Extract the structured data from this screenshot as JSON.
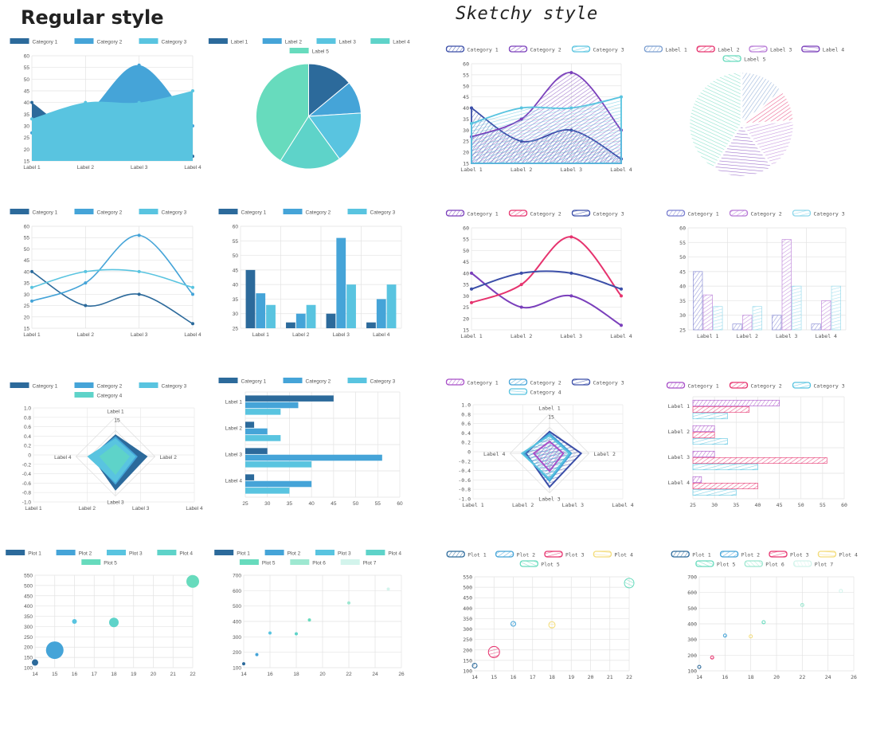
{
  "headings": {
    "regular": "Regular style",
    "sketchy": "Sketchy style"
  },
  "colors": {
    "regular": [
      "#2c6a9b",
      "#45a4d8",
      "#59c4e0",
      "#5ed3c9",
      "#67dbbd",
      "#9ee8d1",
      "#d3f4ec"
    ],
    "sketchy_line": [
      "#7a3fbb",
      "#e6336e",
      "#3b4ea8"
    ],
    "sketchy_misc": [
      "#2c6a9b",
      "#45a4d8",
      "#e6336e",
      "#f3dc7a",
      "#67dbbd",
      "#9ee8d1",
      "#d3f4ec"
    ]
  },
  "chart_data": [
    {
      "id": "area",
      "type": "area",
      "style": "regular",
      "categories": [
        "Label 1",
        "Label 2",
        "Label 3",
        "Label 4"
      ],
      "series": [
        {
          "name": "Category 1",
          "values": [
            40,
            25,
            30,
            17
          ]
        },
        {
          "name": "Category 2",
          "values": [
            27,
            35,
            56,
            30
          ]
        },
        {
          "name": "Category 3",
          "values": [
            33,
            40,
            40,
            45
          ]
        }
      ],
      "ylim": [
        15,
        60
      ],
      "yticks": [
        15,
        20,
        25,
        30,
        35,
        40,
        45,
        50,
        55,
        60
      ]
    },
    {
      "id": "pie",
      "type": "pie",
      "style": "regular",
      "labels": [
        "Label 1",
        "Label 2",
        "Label 3",
        "Label 4",
        "Label 5"
      ],
      "values": [
        14,
        10,
        16,
        19,
        41
      ]
    },
    {
      "id": "line",
      "type": "line",
      "style": "regular",
      "categories": [
        "Label 1",
        "Label 2",
        "Label 3",
        "Label 4"
      ],
      "series": [
        {
          "name": "Category 1",
          "values": [
            40,
            25,
            30,
            17
          ]
        },
        {
          "name": "Category 2",
          "values": [
            27,
            35,
            56,
            30
          ]
        },
        {
          "name": "Category 3",
          "values": [
            33,
            40,
            40,
            33
          ]
        }
      ],
      "ylim": [
        15,
        60
      ],
      "yticks": [
        15,
        20,
        25,
        30,
        35,
        40,
        45,
        50,
        55,
        60
      ]
    },
    {
      "id": "bar",
      "type": "bar",
      "style": "regular",
      "categories": [
        "Label 1",
        "Label 2",
        "Label 3",
        "Label 4"
      ],
      "series": [
        {
          "name": "Category 1",
          "values": [
            45,
            27,
            30,
            27
          ]
        },
        {
          "name": "Category 2",
          "values": [
            37,
            30,
            56,
            35
          ]
        },
        {
          "name": "Category 3",
          "values": [
            33,
            33,
            40,
            40
          ]
        }
      ],
      "ylim": [
        25,
        60
      ],
      "yticks": [
        25,
        30,
        35,
        40,
        45,
        50,
        55,
        60
      ]
    },
    {
      "id": "radar",
      "type": "radar",
      "style": "regular",
      "axes": [
        "Label 1",
        "Label 2",
        "Label 3",
        "Label 4"
      ],
      "series": [
        {
          "name": "Category 1",
          "values": [
            0.55,
            0.8,
            0.85,
            0.6
          ]
        },
        {
          "name": "Category 2",
          "values": [
            0.5,
            0.55,
            0.7,
            0.65
          ]
        },
        {
          "name": "Category 3",
          "values": [
            0.45,
            0.5,
            0.65,
            0.7
          ]
        },
        {
          "name": "Category 4",
          "values": [
            0.3,
            0.35,
            0.45,
            0.4
          ]
        }
      ],
      "yticks": [
        "1.0",
        "0.8",
        "0.6",
        "0.4",
        "0.2",
        "0",
        "-0.2",
        "-0.4",
        "-0.6",
        "-0.8",
        "-1.0"
      ],
      "xticks": [
        "Label 1",
        "Label 2",
        "Label 3",
        "Label 4"
      ],
      "center_label": "15"
    },
    {
      "id": "hbar",
      "type": "bar",
      "style": "regular",
      "orientation": "horizontal",
      "categories": [
        "Label 1",
        "Label 2",
        "Label 3",
        "Label 4"
      ],
      "series": [
        {
          "name": "Category 1",
          "values": [
            45,
            27,
            30,
            27
          ]
        },
        {
          "name": "Category 2",
          "values": [
            37,
            30,
            56,
            40
          ]
        },
        {
          "name": "Category 3",
          "values": [
            33,
            33,
            40,
            35
          ]
        }
      ],
      "xlim": [
        25,
        60
      ],
      "xticks": [
        25,
        30,
        35,
        40,
        45,
        50,
        55,
        60
      ]
    },
    {
      "id": "bubble",
      "type": "scatter",
      "style": "regular",
      "series": [
        {
          "name": "Plot 1",
          "points": [
            [
              14,
              125,
              4
            ]
          ]
        },
        {
          "name": "Plot 2",
          "points": [
            [
              15,
              185,
              11
            ]
          ]
        },
        {
          "name": "Plot 3",
          "points": [
            [
              16,
              325,
              3
            ]
          ]
        },
        {
          "name": "Plot 4",
          "points": [
            [
              18,
              320,
              6
            ]
          ]
        },
        {
          "name": "Plot 5",
          "points": [
            [
              22,
              520,
              8
            ]
          ]
        }
      ],
      "xlim": [
        14,
        22
      ],
      "xticks": [
        14,
        15,
        16,
        17,
        18,
        19,
        20,
        21,
        22
      ],
      "ylim": [
        100,
        550
      ],
      "yticks": [
        100,
        150,
        200,
        250,
        300,
        350,
        400,
        450,
        500,
        550
      ]
    },
    {
      "id": "scatter",
      "type": "scatter",
      "style": "regular",
      "series": [
        {
          "name": "Plot 1",
          "points": [
            [
              14,
              125
            ]
          ]
        },
        {
          "name": "Plot 2",
          "points": [
            [
              15,
              185
            ]
          ]
        },
        {
          "name": "Plot 3",
          "points": [
            [
              16,
              325
            ]
          ]
        },
        {
          "name": "Plot 4",
          "points": [
            [
              18,
              320
            ]
          ]
        },
        {
          "name": "Plot 5",
          "points": [
            [
              19,
              410
            ]
          ]
        },
        {
          "name": "Plot 6",
          "points": [
            [
              22,
              520
            ]
          ]
        },
        {
          "name": "Plot 7",
          "points": [
            [
              25,
              610
            ]
          ]
        }
      ],
      "xlim": [
        14,
        26
      ],
      "xticks": [
        14,
        16,
        18,
        20,
        22,
        24,
        26
      ],
      "ylim": [
        100,
        700
      ],
      "yticks": [
        100,
        200,
        300,
        400,
        500,
        600,
        700
      ]
    },
    {
      "id": "s_area",
      "type": "area",
      "style": "sketchy",
      "categories": [
        "Label 1",
        "Label 2",
        "Label 3",
        "Label 4"
      ],
      "series": [
        {
          "name": "Category 1",
          "values": [
            40,
            25,
            30,
            17
          ]
        },
        {
          "name": "Category 2",
          "values": [
            27,
            35,
            56,
            30
          ]
        },
        {
          "name": "Category 3",
          "values": [
            33,
            40,
            40,
            45
          ]
        }
      ],
      "ylim": [
        15,
        60
      ],
      "yticks": [
        15,
        20,
        25,
        30,
        35,
        40,
        45,
        50,
        55,
        60
      ]
    },
    {
      "id": "s_pie",
      "type": "pie",
      "style": "sketchy",
      "labels": [
        "Label 1",
        "Label 2",
        "Label 3",
        "Label 4",
        "Label 5"
      ],
      "values": [
        14,
        10,
        16,
        19,
        41
      ]
    },
    {
      "id": "s_line",
      "type": "line",
      "style": "sketchy",
      "categories": [
        "Label 1",
        "Label 2",
        "Label 3",
        "Label 4"
      ],
      "series": [
        {
          "name": "Category 1",
          "values": [
            40,
            25,
            30,
            17
          ]
        },
        {
          "name": "Category 2",
          "values": [
            27,
            35,
            56,
            30
          ]
        },
        {
          "name": "Category 3",
          "values": [
            33,
            40,
            40,
            33
          ]
        }
      ],
      "ylim": [
        15,
        60
      ],
      "yticks": [
        15,
        20,
        25,
        30,
        35,
        40,
        45,
        50,
        55,
        60
      ]
    },
    {
      "id": "s_bar",
      "type": "bar",
      "style": "sketchy",
      "categories": [
        "Label 1",
        "Label 2",
        "Label 3",
        "Label 4"
      ],
      "series": [
        {
          "name": "Category 1",
          "values": [
            45,
            27,
            30,
            27
          ]
        },
        {
          "name": "Category 2",
          "values": [
            37,
            30,
            56,
            35
          ]
        },
        {
          "name": "Category 3",
          "values": [
            33,
            33,
            40,
            40
          ]
        }
      ],
      "ylim": [
        25,
        60
      ],
      "yticks": [
        25,
        30,
        35,
        40,
        45,
        50,
        55,
        60
      ]
    },
    {
      "id": "s_radar",
      "type": "radar",
      "style": "sketchy",
      "axes": [
        "Label 1",
        "Label 2",
        "Label 3",
        "Label 4"
      ],
      "series": [
        {
          "name": "Category 1",
          "values": [
            0.3,
            0.35,
            0.45,
            0.4
          ]
        },
        {
          "name": "Category 2",
          "values": [
            0.5,
            0.55,
            0.7,
            0.65
          ]
        },
        {
          "name": "Category 3",
          "values": [
            0.55,
            0.8,
            0.85,
            0.6
          ]
        },
        {
          "name": "Category 4",
          "values": [
            0.45,
            0.5,
            0.65,
            0.7
          ]
        }
      ],
      "yticks": [
        "1.0",
        "0.8",
        "0.6",
        "0.4",
        "0.2",
        "0",
        "-0.2",
        "-0.4",
        "-0.6",
        "-0.8",
        "-1.0"
      ],
      "xticks": [
        "Label 1",
        "Label 2",
        "Label 3",
        "Label 4"
      ],
      "center_label": "15"
    },
    {
      "id": "s_hbar",
      "type": "bar",
      "style": "sketchy",
      "orientation": "horizontal",
      "categories": [
        "Label 1",
        "Label 2",
        "Label 3",
        "Label 4"
      ],
      "series": [
        {
          "name": "Category 1",
          "values": [
            45,
            30,
            30,
            27
          ]
        },
        {
          "name": "Category 2",
          "values": [
            38,
            30,
            56,
            40
          ]
        },
        {
          "name": "Category 3",
          "values": [
            33,
            33,
            40,
            35
          ]
        }
      ],
      "xlim": [
        25,
        60
      ],
      "xticks": [
        25,
        30,
        35,
        40,
        45,
        50,
        55,
        60
      ]
    },
    {
      "id": "s_bubble",
      "type": "scatter",
      "style": "sketchy",
      "series": [
        {
          "name": "Plot 1",
          "points": [
            [
              14,
              125,
              3
            ]
          ]
        },
        {
          "name": "Plot 2",
          "points": [
            [
              16,
              325,
              3
            ]
          ]
        },
        {
          "name": "Plot 3",
          "points": [
            [
              15,
              190,
              7
            ]
          ]
        },
        {
          "name": "Plot 4",
          "points": [
            [
              18,
              320,
              4
            ]
          ]
        },
        {
          "name": "Plot 5",
          "points": [
            [
              22,
              520,
              6
            ]
          ]
        }
      ],
      "xlim": [
        14,
        22
      ],
      "xticks": [
        14,
        15,
        16,
        17,
        18,
        19,
        20,
        21,
        22
      ],
      "ylim": [
        100,
        550
      ],
      "yticks": [
        100,
        150,
        200,
        250,
        300,
        350,
        400,
        450,
        500,
        550
      ]
    },
    {
      "id": "s_scatter",
      "type": "scatter",
      "style": "sketchy",
      "series": [
        {
          "name": "Plot 1",
          "points": [
            [
              14,
              125
            ]
          ]
        },
        {
          "name": "Plot 2",
          "points": [
            [
              16,
              325
            ]
          ]
        },
        {
          "name": "Plot 3",
          "points": [
            [
              15,
              185
            ]
          ]
        },
        {
          "name": "Plot 4",
          "points": [
            [
              18,
              320
            ]
          ]
        },
        {
          "name": "Plot 5",
          "points": [
            [
              19,
              410
            ]
          ]
        },
        {
          "name": "Plot 6",
          "points": [
            [
              22,
              520
            ]
          ]
        },
        {
          "name": "Plot 7",
          "points": [
            [
              25,
              610
            ]
          ]
        }
      ],
      "xlim": [
        14,
        26
      ],
      "xticks": [
        14,
        16,
        18,
        20,
        22,
        24,
        26
      ],
      "ylim": [
        100,
        700
      ],
      "yticks": [
        100,
        200,
        300,
        400,
        500,
        600,
        700
      ]
    }
  ]
}
